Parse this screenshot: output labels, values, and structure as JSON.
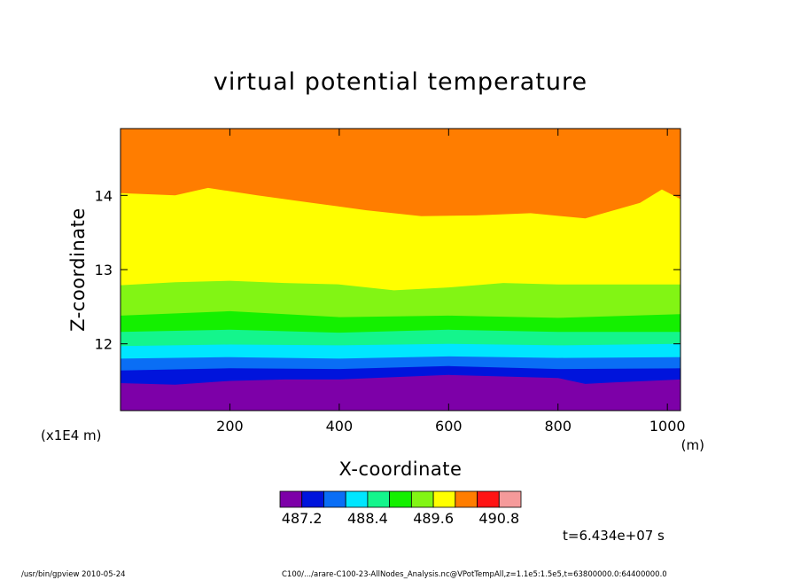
{
  "chart_data": {
    "type": "heatmap",
    "title": "virtual potential temperature",
    "xlabel": "X-coordinate",
    "ylabel": "Z-coordinate",
    "x_unit": "(m)",
    "y_unit": "(x1E4 m)",
    "xlim": [
      0,
      1024
    ],
    "ylim": [
      11.1,
      14.9
    ],
    "x_ticks": [
      200,
      400,
      600,
      800,
      1000
    ],
    "y_ticks": [
      12,
      13,
      14
    ],
    "colorbar": {
      "levels": [
        486.8,
        487.2,
        487.6,
        488.0,
        488.4,
        488.8,
        489.2,
        489.6,
        490.0,
        490.4,
        490.8,
        491.2
      ],
      "labels": [
        "487.2",
        "488.4",
        "489.6",
        "490.8"
      ],
      "colors": [
        "#7d00a8",
        "#0014dc",
        "#0a6ef5",
        "#00e6ff",
        "#14f58c",
        "#14f000",
        "#82f514",
        "#ffff00",
        "#ff7d00",
        "#ff1414",
        "#f59a9a"
      ]
    },
    "contour_boundaries_z": [
      {
        "x": [
          0,
          100,
          200,
          300,
          400,
          500,
          600,
          700,
          800,
          850,
          900,
          1024
        ],
        "z": [
          11.47,
          11.45,
          11.5,
          11.52,
          11.52,
          11.55,
          11.58,
          11.56,
          11.54,
          11.46,
          11.48,
          11.52
        ]
      },
      {
        "x": [
          0,
          200,
          400,
          600,
          800,
          1024
        ],
        "z": [
          11.64,
          11.67,
          11.66,
          11.7,
          11.66,
          11.67
        ]
      },
      {
        "x": [
          0,
          200,
          400,
          600,
          800,
          1024
        ],
        "z": [
          11.8,
          11.82,
          11.8,
          11.83,
          11.81,
          11.82
        ]
      },
      {
        "x": [
          0,
          200,
          400,
          600,
          800,
          1024
        ],
        "z": [
          11.97,
          11.99,
          11.98,
          12.0,
          11.98,
          12.0
        ]
      },
      {
        "x": [
          0,
          200,
          400,
          600,
          800,
          1024
        ],
        "z": [
          12.16,
          12.19,
          12.15,
          12.19,
          12.16,
          12.16
        ]
      },
      {
        "x": [
          0,
          200,
          400,
          600,
          800,
          1024
        ],
        "z": [
          12.38,
          12.44,
          12.36,
          12.38,
          12.35,
          12.4
        ]
      },
      {
        "x": [
          0,
          100,
          200,
          300,
          400,
          500,
          600,
          700,
          800,
          900,
          1024
        ],
        "z": [
          12.79,
          12.83,
          12.85,
          12.82,
          12.8,
          12.72,
          12.76,
          12.82,
          12.8,
          12.8,
          12.8
        ]
      },
      {
        "x": [
          0,
          100,
          160,
          250,
          350,
          450,
          550,
          650,
          750,
          850,
          950,
          990,
          1024
        ],
        "z": [
          14.03,
          14.0,
          14.1,
          14.0,
          13.9,
          13.8,
          13.72,
          13.73,
          13.76,
          13.69,
          13.9,
          14.08,
          13.95
        ]
      }
    ],
    "annotation": "t=6.434e+07 s"
  },
  "footer": {
    "left": "/usr/bin/gpview   2010-05-24",
    "right": "C100/.../arare-C100-23-AllNodes_Analysis.nc@VPotTempAll,z=1.1e5:1.5e5,t=63800000.0:64400000.0"
  }
}
